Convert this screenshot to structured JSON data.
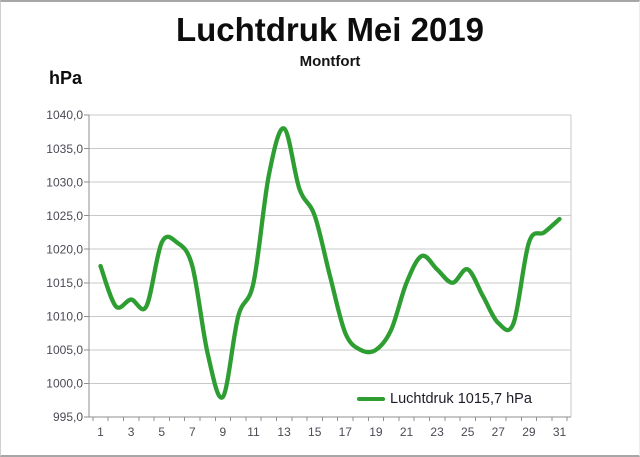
{
  "chart": {
    "title": "Luchtdruk Mei 2019",
    "subtitle": "Montfort",
    "y_unit_label": "hPa"
  },
  "colors": {
    "line_green": "#2E9E32",
    "gridline": "#c8c8c8",
    "axis_line": "#8f8f8f",
    "tick_label": "#4a4a55",
    "title_text": "#0d0d0d",
    "background": "#ffffff",
    "outer_border": "#a6a6a6"
  },
  "chart_data": {
    "type": "line",
    "title": "Luchtdruk Mei 2019",
    "subtitle": "Montfort",
    "ylabel": "hPa",
    "xlabel": "",
    "smoothed": true,
    "grid": "horizontal-only",
    "ylim": [
      995,
      1040
    ],
    "ytick_step": 5,
    "ytick_labels": [
      "1040,0",
      "1035,0",
      "1030,0",
      "1025,0",
      "1020,0",
      "1015,0",
      "1010,0",
      "1005,0",
      "1000,0",
      "995,0"
    ],
    "xtick_labels": [
      "1",
      "3",
      "5",
      "7",
      "9",
      "11",
      "13",
      "15",
      "17",
      "19",
      "21",
      "23",
      "25",
      "27",
      "29",
      "31"
    ],
    "x": [
      1,
      2,
      3,
      4,
      5,
      6,
      7,
      8,
      9,
      10,
      11,
      12,
      13,
      14,
      15,
      16,
      17,
      18,
      19,
      20,
      21,
      22,
      23,
      24,
      25,
      26,
      27,
      28,
      29,
      30,
      31
    ],
    "series": [
      {
        "name": "Luchtdruk 1015,7 hPa",
        "color": "#2E9E32",
        "values": [
          1017.5,
          1011.5,
          1012.5,
          1011.5,
          1021.0,
          1021.0,
          1017.5,
          1004.5,
          998.0,
          1010.0,
          1015.0,
          1031.0,
          1038.0,
          1029.0,
          1025.0,
          1016.0,
          1007.5,
          1005.0,
          1005.0,
          1008.0,
          1015.0,
          1019.0,
          1017.0,
          1015.0,
          1017.0,
          1013.0,
          1009.0,
          1009.0,
          1021.0,
          1022.5,
          1024.5
        ]
      }
    ],
    "legend": {
      "text": "Luchtdruk 1015,7 hPa",
      "position": "inside-bottom-right"
    }
  }
}
